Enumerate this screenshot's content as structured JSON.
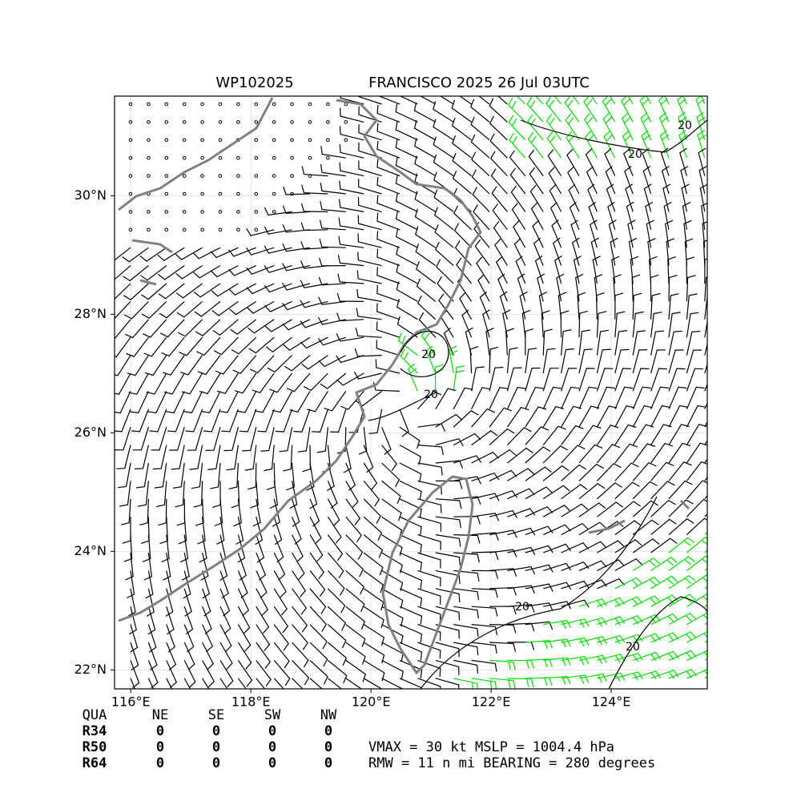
{
  "header": {
    "storm_id": "WP102025",
    "title": "FRANCISCO 2025 26 Jul 03UTC"
  },
  "map": {
    "lon_range": [
      115.73,
      125.6
    ],
    "lat_range": [
      21.68,
      31.68
    ],
    "lon_ticks": [
      {
        "value": 116,
        "label": "116°E"
      },
      {
        "value": 118,
        "label": "118°E"
      },
      {
        "value": 120,
        "label": "120°E"
      },
      {
        "value": 122,
        "label": "122°E"
      },
      {
        "value": 124,
        "label": "124°E"
      }
    ],
    "lat_ticks": [
      {
        "value": 22,
        "label": "22°N"
      },
      {
        "value": 24,
        "label": "24°N"
      },
      {
        "value": 26,
        "label": "26°N"
      },
      {
        "value": 28,
        "label": "28°N"
      },
      {
        "value": 30,
        "label": "30°N"
      }
    ],
    "contour_labels": [
      "20",
      "20",
      "20",
      "20",
      "20",
      "20"
    ]
  },
  "table": {
    "header": [
      "QUA",
      "NE",
      "SE",
      "SW",
      "NW"
    ],
    "rows": [
      [
        "R34",
        "0",
        "0",
        "0",
        "0"
      ],
      [
        "R50",
        "0",
        "0",
        "0",
        "0"
      ],
      [
        "R64",
        "0",
        "0",
        "0",
        "0"
      ]
    ]
  },
  "info": [
    "VMAX =  30 kt MSLP = 1004.4 hPa",
    "RMW =  11 n mi BEARING = 280 degrees"
  ]
}
